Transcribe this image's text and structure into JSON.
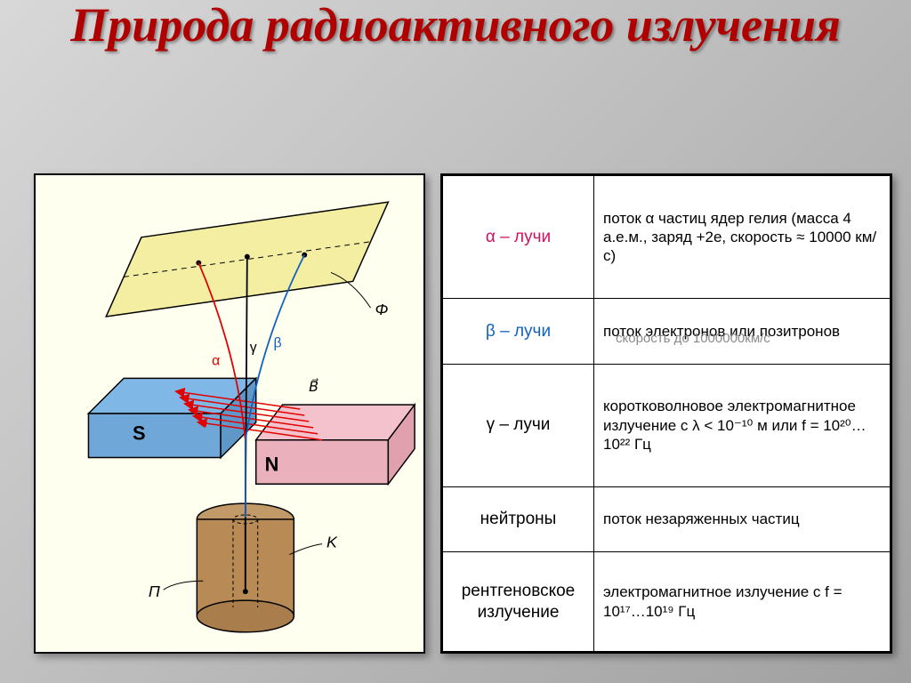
{
  "title": {
    "text": "Природа радиоактивного излучения",
    "color": "#b00000",
    "fontsize": 54
  },
  "diagram": {
    "background": "#fffff0",
    "plate": {
      "fill": "#f3eea2",
      "stroke": "#000000"
    },
    "magnet_s": {
      "fill": "#7fb7e6",
      "stroke": "#000000",
      "label": "S",
      "label_color": "#000000"
    },
    "magnet_n": {
      "fill": "#f4c2cc",
      "stroke": "#000000",
      "label": "N",
      "label_color": "#000000"
    },
    "cylinder": {
      "fill": "#b78a56",
      "stroke": "#000000"
    },
    "field_arrow_color": "#e00000",
    "field_label": "B⃗",
    "rays": {
      "alpha": {
        "label": "α",
        "color": "#e00000"
      },
      "beta": {
        "label": "β",
        "color": "#1060c0"
      },
      "gamma": {
        "label": "γ",
        "color": "#000000"
      }
    },
    "labels": {
      "phi": "Φ",
      "pi": "П",
      "k": "K"
    }
  },
  "table": {
    "rows": [
      {
        "label_html": "α – лучи",
        "label_color": "#d01060",
        "desc": "поток α частиц ядер гелия (масса 4 а.е.м., заряд +2e, скорость ≈ 10000 км/с)"
      },
      {
        "label_html": "β – лучи",
        "label_color": "#1060c0",
        "desc": "поток электронов или позитронов"
      },
      {
        "label_html": "γ – лучи",
        "label_color": "#000000",
        "desc": "коротковолновое электромагнитное излучение с λ < 10⁻¹⁰ м или f = 10²⁰…10²² Гц"
      },
      {
        "label_html": "нейтроны",
        "label_color": "#000000",
        "desc": "поток незаряженных частиц"
      },
      {
        "label_html": "рентгеновское излучение",
        "label_color": "#000000",
        "desc": "электромагнитное излучение с f = 10¹⁷…10¹⁹ Гц"
      }
    ]
  },
  "overlay": {
    "beta_speed_note": "скорость до 1000000км/с",
    "color": "#8a8a8a"
  }
}
